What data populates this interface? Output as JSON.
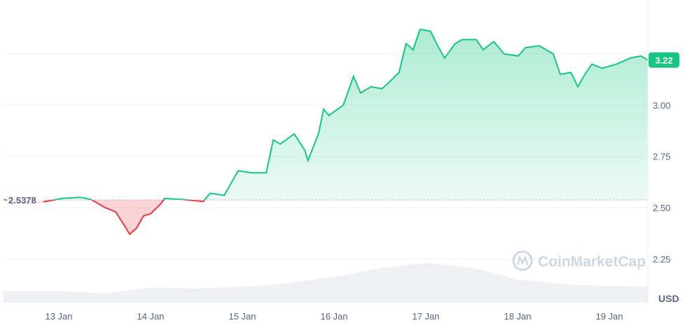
{
  "chart_data": {
    "type": "area",
    "currency_label": "USD",
    "watermark": "CoinMarketCap",
    "baseline_value": 2.5378,
    "baseline_label": "2.5378",
    "current_value": 3.22,
    "current_label": "3.22",
    "ylim": [
      2.1,
      3.45
    ],
    "y_ticks": [
      {
        "value": 2.25,
        "label": "2.25"
      },
      {
        "value": 2.5,
        "label": "2.50"
      },
      {
        "value": 2.75,
        "label": "2.75"
      },
      {
        "value": 3.0,
        "label": "3.00"
      }
    ],
    "x_range": [
      "12 Jan 09:30",
      "19 Jan 10:05"
    ],
    "x_ticks": [
      {
        "value": "13 Jan 00:00",
        "label": "13 Jan"
      },
      {
        "value": "14 Jan 00:00",
        "label": "14 Jan"
      },
      {
        "value": "15 Jan 00:00",
        "label": "15 Jan"
      },
      {
        "value": "16 Jan 00:00",
        "label": "16 Jan"
      },
      {
        "value": "17 Jan 00:00",
        "label": "17 Jan"
      },
      {
        "value": "18 Jan 00:00",
        "label": "18 Jan"
      },
      {
        "value": "19 Jan 00:00",
        "label": "19 Jan"
      }
    ],
    "grid": true,
    "colors": {
      "up": "#16c784",
      "down": "#ea3943",
      "volume": "#eef0f3",
      "grid": "#eff2f5"
    },
    "price": [
      [
        "12 Jan 09:30",
        2.54
      ],
      [
        "12 Jan 16:00",
        2.52
      ],
      [
        "12 Jan 20:30",
        2.53
      ],
      [
        "13 Jan 01:00",
        2.545
      ],
      [
        "13 Jan 05:40",
        2.55
      ],
      [
        "13 Jan 08:25",
        2.54
      ],
      [
        "13 Jan 12:05",
        2.5
      ],
      [
        "13 Jan 14:50",
        2.48
      ],
      [
        "13 Jan 17:35",
        2.4
      ],
      [
        "13 Jan 18:30",
        2.37
      ],
      [
        "13 Jan 20:20",
        2.4
      ],
      [
        "13 Jan 22:10",
        2.46
      ],
      [
        "14 Jan 00:00",
        2.47
      ],
      [
        "14 Jan 02:45",
        2.52
      ],
      [
        "14 Jan 03:40",
        2.545
      ],
      [
        "14 Jan 08:15",
        2.54
      ],
      [
        "14 Jan 13:45",
        2.53
      ],
      [
        "14 Jan 15:35",
        2.57
      ],
      [
        "14 Jan 19:15",
        2.56
      ],
      [
        "14 Jan 22:55",
        2.68
      ],
      [
        "15 Jan 02:35",
        2.67
      ],
      [
        "15 Jan 06:15",
        2.67
      ],
      [
        "15 Jan 08:05",
        2.83
      ],
      [
        "15 Jan 09:55",
        2.81
      ],
      [
        "15 Jan 13:35",
        2.86
      ],
      [
        "15 Jan 16:20",
        2.78
      ],
      [
        "15 Jan 17:10",
        2.73
      ],
      [
        "15 Jan 19:55",
        2.86
      ],
      [
        "15 Jan 21:15",
        2.98
      ],
      [
        "15 Jan 22:40",
        2.95
      ],
      [
        "16 Jan 02:25",
        3.0
      ],
      [
        "16 Jan 05:05",
        3.14
      ],
      [
        "16 Jan 06:55",
        3.06
      ],
      [
        "16 Jan 09:40",
        3.09
      ],
      [
        "16 Jan 12:30",
        3.08
      ],
      [
        "16 Jan 14:20",
        3.11
      ],
      [
        "16 Jan 17:00",
        3.16
      ],
      [
        "16 Jan 18:50",
        3.3
      ],
      [
        "16 Jan 20:40",
        3.27
      ],
      [
        "16 Jan 22:30",
        3.37
      ],
      [
        "17 Jan 01:15",
        3.36
      ],
      [
        "17 Jan 03:05",
        3.29
      ],
      [
        "17 Jan 04:55",
        3.23
      ],
      [
        "17 Jan 07:40",
        3.3
      ],
      [
        "17 Jan 09:30",
        3.32
      ],
      [
        "17 Jan 13:10",
        3.32
      ],
      [
        "17 Jan 15:00",
        3.27
      ],
      [
        "17 Jan 17:45",
        3.31
      ],
      [
        "17 Jan 20:30",
        3.25
      ],
      [
        "18 Jan 00:10",
        3.24
      ],
      [
        "18 Jan 02:00",
        3.28
      ],
      [
        "18 Jan 05:40",
        3.29
      ],
      [
        "18 Jan 09:20",
        3.25
      ],
      [
        "18 Jan 11:10",
        3.15
      ],
      [
        "18 Jan 13:55",
        3.16
      ],
      [
        "18 Jan 15:45",
        3.09
      ],
      [
        "18 Jan 17:35",
        3.15
      ],
      [
        "18 Jan 19:25",
        3.2
      ],
      [
        "18 Jan 22:10",
        3.18
      ],
      [
        "19 Jan 01:50",
        3.2
      ],
      [
        "19 Jan 05:30",
        3.23
      ],
      [
        "19 Jan 08:15",
        3.24
      ],
      [
        "19 Jan 10:05",
        3.22
      ]
    ],
    "volume_relative": [
      [
        "12 Jan 09:30",
        0.28
      ],
      [
        "13 Jan 00:00",
        0.28
      ],
      [
        "13 Jan 12:00",
        0.22
      ],
      [
        "14 Jan 00:00",
        0.36
      ],
      [
        "14 Jan 12:00",
        0.34
      ],
      [
        "15 Jan 00:00",
        0.38
      ],
      [
        "15 Jan 12:00",
        0.46
      ],
      [
        "16 Jan 00:00",
        0.62
      ],
      [
        "16 Jan 12:00",
        0.82
      ],
      [
        "17 Jan 00:00",
        0.95
      ],
      [
        "17 Jan 12:00",
        0.84
      ],
      [
        "18 Jan 00:00",
        0.55
      ],
      [
        "18 Jan 12:00",
        0.44
      ],
      [
        "19 Jan 00:00",
        0.4
      ],
      [
        "19 Jan 10:05",
        0.38
      ]
    ]
  }
}
